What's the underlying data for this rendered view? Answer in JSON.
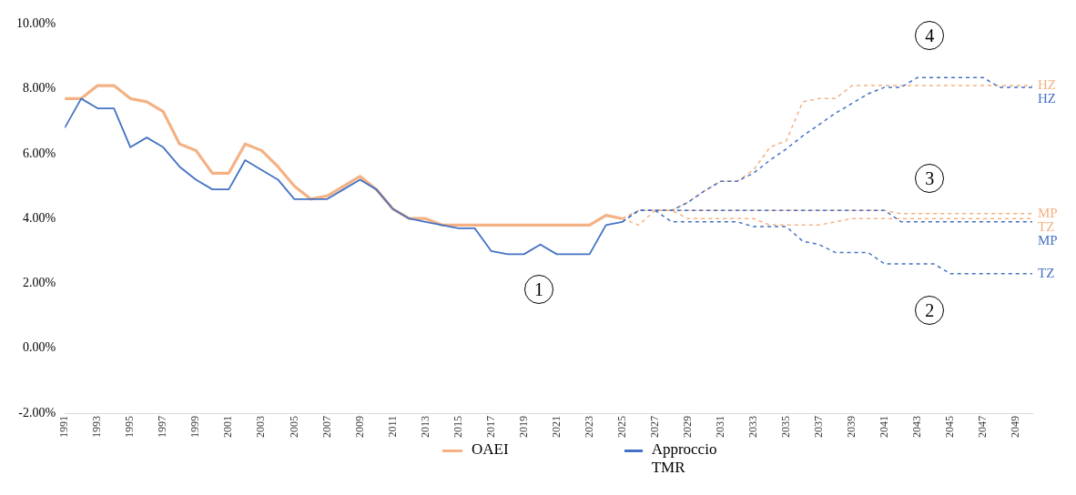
{
  "chart_data": {
    "type": "line",
    "xlim": [
      1991,
      2050
    ],
    "xticks": [
      1991,
      1993,
      1995,
      1997,
      1999,
      2001,
      2003,
      2005,
      2007,
      2009,
      2011,
      2013,
      2015,
      2017,
      2019,
      2021,
      2023,
      2025,
      2027,
      2029,
      2031,
      2033,
      2035,
      2037,
      2039,
      2041,
      2043,
      2045,
      2047,
      2049
    ],
    "ylim": [
      -2,
      10
    ],
    "yticks": [
      {
        "value": -2,
        "label": "-2.00%"
      },
      {
        "value": 0,
        "label": "0.00%"
      },
      {
        "value": 2,
        "label": "2.00%"
      },
      {
        "value": 4,
        "label": "4.00%"
      },
      {
        "value": 6,
        "label": "6.00%"
      },
      {
        "value": 8,
        "label": "8.00%"
      },
      {
        "value": 10,
        "label": "10.00%"
      }
    ],
    "grid": false,
    "legend": "bottom",
    "series": [
      {
        "name": "OAEI",
        "color": "#f4b183",
        "line_style": "solid",
        "x": [
          1991,
          1992,
          1993,
          1994,
          1995,
          1996,
          1997,
          1998,
          1999,
          2000,
          2001,
          2002,
          2003,
          2004,
          2005,
          2006,
          2007,
          2008,
          2009,
          2010,
          2011,
          2012,
          2013,
          2014,
          2015,
          2016,
          2017,
          2018,
          2019,
          2020,
          2021,
          2022,
          2023,
          2024,
          2025
        ],
        "values": [
          7.7,
          7.7,
          8.1,
          8.1,
          7.7,
          7.6,
          7.3,
          6.3,
          6.1,
          5.4,
          5.4,
          6.3,
          6.1,
          5.6,
          5.0,
          4.6,
          4.7,
          5.0,
          5.3,
          4.9,
          4.3,
          4.0,
          4.0,
          3.8,
          3.8,
          3.8,
          3.8,
          3.8,
          3.8,
          3.8,
          3.8,
          3.8,
          3.8,
          4.1,
          4.0
        ]
      },
      {
        "name": "Approccio TMR",
        "color": "#4472c4",
        "line_style": "solid",
        "x": [
          1991,
          1992,
          1993,
          1994,
          1995,
          1996,
          1997,
          1998,
          1999,
          2000,
          2001,
          2002,
          2003,
          2004,
          2005,
          2006,
          2007,
          2008,
          2009,
          2010,
          2011,
          2012,
          2013,
          2014,
          2015,
          2016,
          2017,
          2018,
          2019,
          2020,
          2021,
          2022,
          2023,
          2024,
          2025
        ],
        "values": [
          6.8,
          7.7,
          7.4,
          7.4,
          6.2,
          6.5,
          6.2,
          5.6,
          5.2,
          4.9,
          4.9,
          5.8,
          5.5,
          5.2,
          4.6,
          4.6,
          4.6,
          4.9,
          5.2,
          4.9,
          4.3,
          4.0,
          3.9,
          3.8,
          3.7,
          3.7,
          3.0,
          2.9,
          2.9,
          3.2,
          2.9,
          2.9,
          2.9,
          3.8,
          3.9
        ]
      },
      {
        "name": "HZ",
        "color": "#f4b183",
        "line_style": "dashed",
        "x": [
          2025,
          2026,
          2027,
          2028,
          2029,
          2030,
          2031,
          2032,
          2033,
          2034,
          2035,
          2036,
          2037,
          2038,
          2039,
          2040,
          2041,
          2042,
          2043,
          2044,
          2045,
          2046,
          2047,
          2048,
          2049,
          2050
        ],
        "values": [
          4.0,
          4.25,
          4.25,
          4.25,
          4.5,
          4.85,
          5.15,
          5.15,
          5.5,
          6.2,
          6.4,
          7.6,
          7.7,
          7.7,
          8.1,
          8.1,
          8.1,
          8.1,
          8.1,
          8.1,
          8.1,
          8.1,
          8.1,
          8.1,
          8.1,
          8.1
        ]
      },
      {
        "name": "HZ",
        "color": "#4472c4",
        "line_style": "dashed",
        "x": [
          2025,
          2026,
          2027,
          2028,
          2029,
          2030,
          2031,
          2032,
          2033,
          2034,
          2035,
          2036,
          2037,
          2038,
          2039,
          2040,
          2041,
          2042,
          2043,
          2044,
          2045,
          2046,
          2047,
          2048,
          2049,
          2050
        ],
        "values": [
          3.9,
          4.25,
          4.25,
          4.25,
          4.5,
          4.85,
          5.15,
          5.15,
          5.4,
          5.8,
          6.15,
          6.55,
          6.9,
          7.25,
          7.55,
          7.85,
          8.05,
          8.05,
          8.35,
          8.35,
          8.35,
          8.35,
          8.35,
          8.05,
          8.05,
          8.05
        ]
      },
      {
        "name": "MP",
        "color": "#f4b183",
        "line_style": "dashed",
        "x": [
          2025,
          2026,
          2027,
          2028,
          2029,
          2030,
          2031,
          2032,
          2033,
          2034,
          2035,
          2036,
          2037,
          2038,
          2039,
          2040,
          2041,
          2042,
          2043,
          2044,
          2045,
          2046,
          2047,
          2048,
          2049,
          2050
        ],
        "values": [
          4.0,
          4.25,
          4.25,
          4.25,
          4.25,
          4.25,
          4.25,
          4.25,
          4.25,
          4.25,
          4.25,
          4.25,
          4.25,
          4.25,
          4.25,
          4.25,
          4.25,
          4.15,
          4.15,
          4.15,
          4.15,
          4.15,
          4.15,
          4.15,
          4.15,
          4.15
        ]
      },
      {
        "name": "TZ",
        "color": "#f4b183",
        "line_style": "dashed",
        "x": [
          2025,
          2026,
          2027,
          2028,
          2029,
          2030,
          2031,
          2032,
          2033,
          2034,
          2035,
          2036,
          2037,
          2038,
          2039,
          2040,
          2041,
          2042,
          2043,
          2044,
          2045,
          2046,
          2047,
          2048,
          2049,
          2050
        ],
        "values": [
          4.0,
          3.8,
          4.25,
          4.25,
          4.0,
          4.0,
          4.0,
          4.0,
          4.0,
          3.8,
          3.8,
          3.8,
          3.8,
          3.9,
          4.0,
          4.0,
          4.0,
          4.0,
          4.0,
          4.0,
          4.0,
          4.0,
          4.0,
          4.0,
          4.0,
          4.0
        ]
      },
      {
        "name": "MP",
        "color": "#4472c4",
        "line_style": "dashed",
        "x": [
          2025,
          2026,
          2027,
          2028,
          2029,
          2030,
          2031,
          2032,
          2033,
          2034,
          2035,
          2036,
          2037,
          2038,
          2039,
          2040,
          2041,
          2042,
          2043,
          2044,
          2045,
          2046,
          2047,
          2048,
          2049,
          2050
        ],
        "values": [
          3.9,
          4.25,
          4.25,
          4.25,
          4.25,
          4.25,
          4.25,
          4.25,
          4.25,
          4.25,
          4.25,
          4.25,
          4.25,
          4.25,
          4.25,
          4.25,
          4.25,
          3.9,
          3.9,
          3.9,
          3.9,
          3.9,
          3.9,
          3.9,
          3.9,
          3.9
        ]
      },
      {
        "name": "TZ",
        "color": "#4472c4",
        "line_style": "dashed",
        "x": [
          2025,
          2026,
          2027,
          2028,
          2029,
          2030,
          2031,
          2032,
          2033,
          2034,
          2035,
          2036,
          2037,
          2038,
          2039,
          2040,
          2041,
          2042,
          2043,
          2044,
          2045,
          2046,
          2047,
          2048,
          2049,
          2050
        ],
        "values": [
          3.9,
          4.25,
          4.25,
          3.9,
          3.9,
          3.9,
          3.9,
          3.9,
          3.75,
          3.75,
          3.75,
          3.3,
          3.2,
          2.95,
          2.95,
          2.95,
          2.6,
          2.6,
          2.6,
          2.6,
          2.3,
          2.3,
          2.3,
          2.3,
          2.3,
          2.3
        ]
      }
    ],
    "annotations": [
      "1",
      "2",
      "3",
      "4"
    ]
  }
}
